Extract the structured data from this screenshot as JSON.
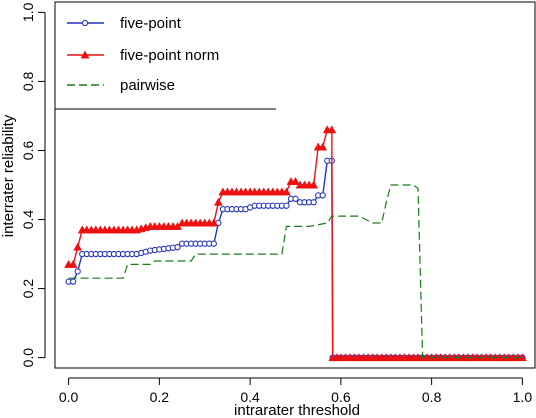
{
  "chart_data": {
    "type": "line",
    "title": "",
    "xlabel": "intrarater threshold",
    "ylabel": "interrater reliability",
    "xlim": [
      -0.03,
      1.03
    ],
    "ylim": [
      -0.03,
      1.03
    ],
    "xticks": [
      "0.0",
      "0.2",
      "0.4",
      "0.6",
      "0.8",
      "1.0"
    ],
    "yticks": [
      "0.0",
      "0.2",
      "0.4",
      "0.6",
      "0.8",
      "1.0"
    ],
    "xtick_values": [
      0,
      0.2,
      0.4,
      0.6,
      0.8,
      1.0
    ],
    "ytick_values": [
      0,
      0.2,
      0.4,
      0.6,
      0.8,
      1.0
    ],
    "grid": false,
    "legend_position": "top-left",
    "series": [
      {
        "name": "five-point",
        "color": "#2233bb",
        "marker": "open-circle",
        "line": "solid",
        "points": [
          [
            0.0,
            0.22
          ],
          [
            0.01,
            0.22
          ],
          [
            0.02,
            0.25
          ],
          [
            0.03,
            0.3
          ],
          [
            0.1,
            0.3
          ],
          [
            0.11,
            0.3
          ],
          [
            0.15,
            0.3
          ],
          [
            0.18,
            0.31
          ],
          [
            0.24,
            0.32
          ],
          [
            0.25,
            0.33
          ],
          [
            0.29,
            0.33
          ],
          [
            0.32,
            0.33
          ],
          [
            0.33,
            0.39
          ],
          [
            0.34,
            0.43
          ],
          [
            0.39,
            0.43
          ],
          [
            0.41,
            0.44
          ],
          [
            0.46,
            0.44
          ],
          [
            0.48,
            0.44
          ],
          [
            0.49,
            0.46
          ],
          [
            0.5,
            0.46
          ],
          [
            0.51,
            0.45
          ],
          [
            0.54,
            0.45
          ],
          [
            0.55,
            0.47
          ],
          [
            0.56,
            0.47
          ],
          [
            0.57,
            0.57
          ],
          [
            0.58,
            0.57
          ],
          [
            0.582,
            0.0
          ],
          [
            0.6,
            0.0
          ],
          [
            1.0,
            0.0
          ]
        ]
      },
      {
        "name": "five-point norm",
        "color": "#ee1111",
        "marker": "filled-triangle",
        "line": "solid",
        "points": [
          [
            0.0,
            0.27
          ],
          [
            0.01,
            0.27
          ],
          [
            0.02,
            0.32
          ],
          [
            0.03,
            0.37
          ],
          [
            0.1,
            0.37
          ],
          [
            0.11,
            0.37
          ],
          [
            0.15,
            0.37
          ],
          [
            0.18,
            0.38
          ],
          [
            0.24,
            0.38
          ],
          [
            0.25,
            0.39
          ],
          [
            0.29,
            0.39
          ],
          [
            0.32,
            0.39
          ],
          [
            0.33,
            0.45
          ],
          [
            0.34,
            0.48
          ],
          [
            0.39,
            0.48
          ],
          [
            0.41,
            0.48
          ],
          [
            0.46,
            0.48
          ],
          [
            0.48,
            0.48
          ],
          [
            0.49,
            0.51
          ],
          [
            0.5,
            0.51
          ],
          [
            0.51,
            0.5
          ],
          [
            0.54,
            0.5
          ],
          [
            0.55,
            0.61
          ],
          [
            0.56,
            0.61
          ],
          [
            0.57,
            0.66
          ],
          [
            0.58,
            0.66
          ],
          [
            0.582,
            0.0
          ],
          [
            0.6,
            0.0
          ],
          [
            1.0,
            0.0
          ]
        ]
      },
      {
        "name": "pairwise",
        "color": "#1a7a1a",
        "marker": "none",
        "line": "dashed",
        "points": [
          [
            0.0,
            0.23
          ],
          [
            0.12,
            0.23
          ],
          [
            0.13,
            0.27
          ],
          [
            0.18,
            0.27
          ],
          [
            0.19,
            0.28
          ],
          [
            0.27,
            0.28
          ],
          [
            0.28,
            0.3
          ],
          [
            0.42,
            0.3
          ],
          [
            0.47,
            0.3
          ],
          [
            0.48,
            0.38
          ],
          [
            0.52,
            0.38
          ],
          [
            0.53,
            0.38
          ],
          [
            0.57,
            0.39
          ],
          [
            0.58,
            0.41
          ],
          [
            0.64,
            0.41
          ],
          [
            0.67,
            0.39
          ],
          [
            0.69,
            0.39
          ],
          [
            0.7,
            0.45
          ],
          [
            0.71,
            0.5
          ],
          [
            0.73,
            0.5
          ],
          [
            0.76,
            0.5
          ],
          [
            0.77,
            0.49
          ],
          [
            0.78,
            0.0
          ],
          [
            1.0,
            0.0
          ]
        ]
      }
    ]
  }
}
